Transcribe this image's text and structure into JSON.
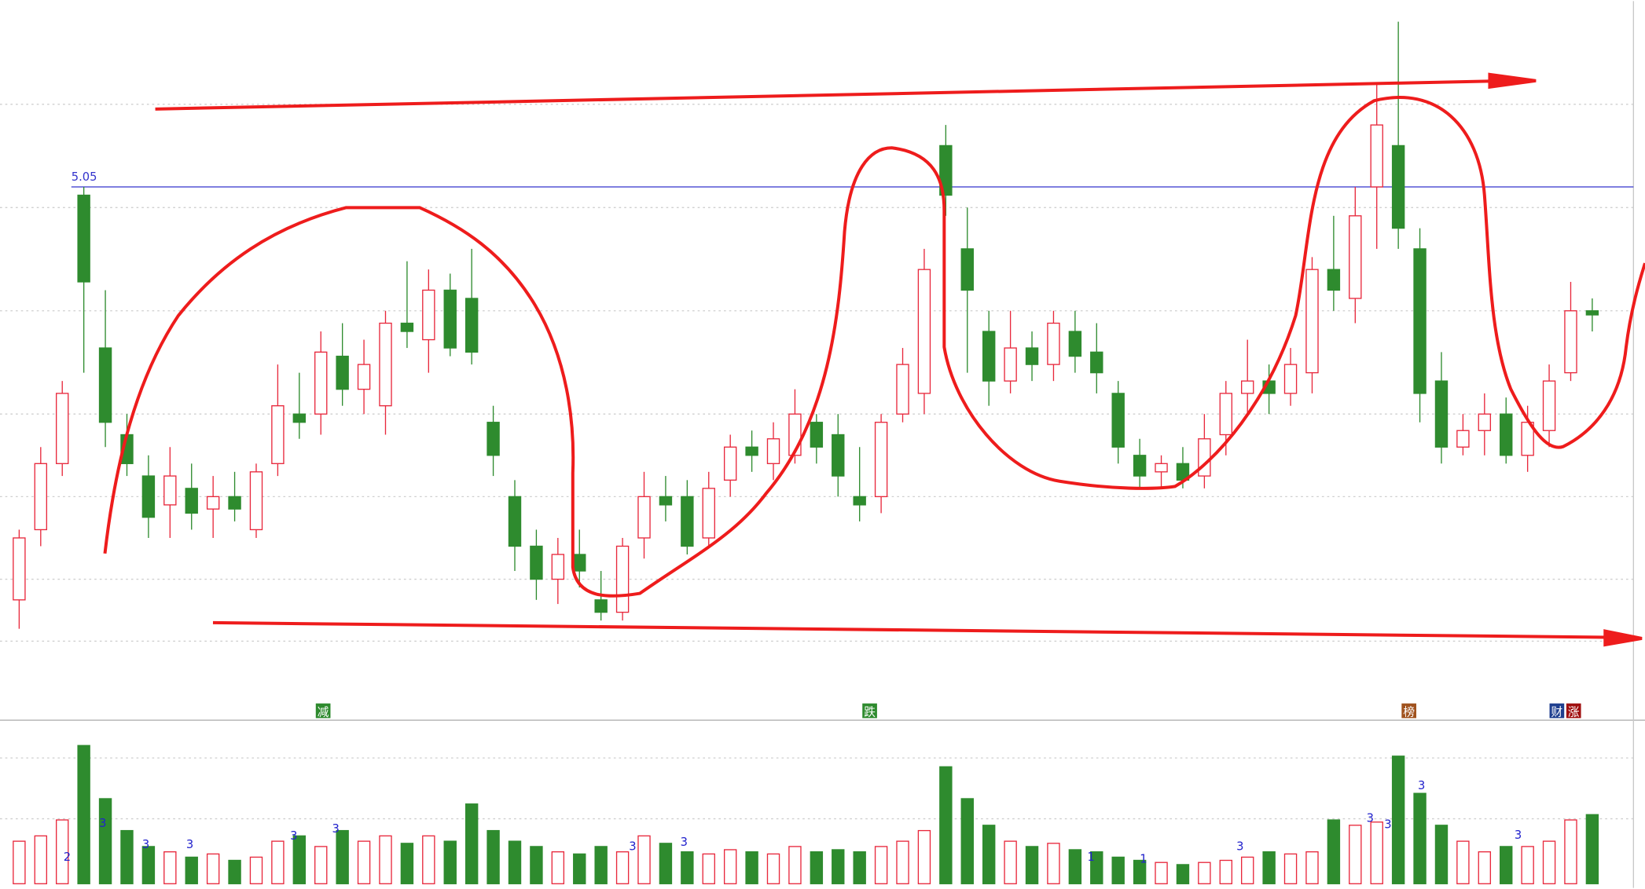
{
  "chart_data": {
    "type": "candlestick",
    "ylim": [
      3.85,
      5.5
    ],
    "grid_y": [
      5.25,
      5.0,
      4.75,
      4.5,
      4.3,
      4.1,
      3.95
    ],
    "reference_line": {
      "value": 5.05,
      "color": "#3333cc"
    },
    "up_color": "#e8283c",
    "down_color": "#2e8b2e",
    "open": [
      4.05,
      4.22,
      4.38,
      5.03,
      4.66,
      4.45,
      4.35,
      4.28,
      4.32,
      4.27,
      4.3,
      4.22,
      4.38,
      4.5,
      4.5,
      4.64,
      4.56,
      4.52,
      4.72,
      4.68,
      4.8,
      4.78,
      4.48,
      4.3,
      4.18,
      4.1,
      4.16,
      4.05,
      4.02,
      4.2,
      4.3,
      4.3,
      4.2,
      4.34,
      4.42,
      4.38,
      4.4,
      4.48,
      4.45,
      4.3,
      4.3,
      4.5,
      4.55,
      5.15,
      4.9,
      4.7,
      4.58,
      4.66,
      4.62,
      4.7,
      4.65,
      4.55,
      4.4,
      4.36,
      4.38,
      4.35,
      4.45,
      4.55,
      4.58,
      4.55,
      4.6,
      4.85,
      4.78,
      5.05,
      5.15,
      4.9,
      4.58,
      4.42,
      4.46,
      4.5,
      4.4,
      4.46,
      4.6,
      4.75
    ],
    "high": [
      4.22,
      4.42,
      4.58,
      5.05,
      4.8,
      4.5,
      4.4,
      4.42,
      4.38,
      4.35,
      4.36,
      4.38,
      4.62,
      4.6,
      4.7,
      4.72,
      4.68,
      4.75,
      4.87,
      4.85,
      4.84,
      4.9,
      4.52,
      4.34,
      4.22,
      4.2,
      4.22,
      4.12,
      4.2,
      4.36,
      4.35,
      4.34,
      4.36,
      4.45,
      4.46,
      4.48,
      4.56,
      4.5,
      4.5,
      4.42,
      4.5,
      4.66,
      4.9,
      5.2,
      5.0,
      4.75,
      4.75,
      4.7,
      4.75,
      4.75,
      4.72,
      4.58,
      4.44,
      4.4,
      4.42,
      4.5,
      4.58,
      4.68,
      4.62,
      4.66,
      4.88,
      4.98,
      5.05,
      5.3,
      5.45,
      4.95,
      4.65,
      4.5,
      4.55,
      4.54,
      4.52,
      4.62,
      4.82,
      4.78
    ],
    "low": [
      3.98,
      4.18,
      4.35,
      4.6,
      4.42,
      4.35,
      4.2,
      4.2,
      4.22,
      4.2,
      4.24,
      4.2,
      4.35,
      4.44,
      4.45,
      4.52,
      4.5,
      4.45,
      4.66,
      4.6,
      4.64,
      4.62,
      4.35,
      4.12,
      4.05,
      4.04,
      4.08,
      4.0,
      4.0,
      4.15,
      4.24,
      4.16,
      4.18,
      4.3,
      4.36,
      4.34,
      4.38,
      4.38,
      4.3,
      4.24,
      4.26,
      4.48,
      4.5,
      4.98,
      4.6,
      4.52,
      4.55,
      4.58,
      4.58,
      4.6,
      4.55,
      4.38,
      4.32,
      4.32,
      4.32,
      4.32,
      4.4,
      4.5,
      4.5,
      4.52,
      4.55,
      4.75,
      4.72,
      4.9,
      4.9,
      4.48,
      4.38,
      4.4,
      4.4,
      4.38,
      4.36,
      4.42,
      4.58,
      4.7
    ],
    "close": [
      4.2,
      4.38,
      4.55,
      4.82,
      4.48,
      4.38,
      4.25,
      4.35,
      4.26,
      4.3,
      4.27,
      4.36,
      4.52,
      4.48,
      4.65,
      4.56,
      4.62,
      4.72,
      4.7,
      4.8,
      4.66,
      4.65,
      4.4,
      4.18,
      4.1,
      4.16,
      4.12,
      4.02,
      4.18,
      4.3,
      4.28,
      4.18,
      4.32,
      4.42,
      4.4,
      4.44,
      4.5,
      4.42,
      4.35,
      4.28,
      4.48,
      4.62,
      4.85,
      5.03,
      4.8,
      4.58,
      4.66,
      4.62,
      4.72,
      4.64,
      4.6,
      4.42,
      4.35,
      4.38,
      4.34,
      4.44,
      4.55,
      4.58,
      4.55,
      4.62,
      4.85,
      4.8,
      4.98,
      5.2,
      4.95,
      4.55,
      4.42,
      4.46,
      4.5,
      4.4,
      4.48,
      4.58,
      4.75,
      4.74
    ],
    "volume": [
      40,
      45,
      60,
      130,
      80,
      50,
      35,
      30,
      25,
      28,
      22,
      25,
      40,
      45,
      35,
      50,
      40,
      45,
      38,
      45,
      40,
      75,
      50,
      40,
      35,
      30,
      28,
      35,
      30,
      45,
      38,
      30,
      28,
      32,
      30,
      28,
      35,
      30,
      32,
      30,
      35,
      40,
      50,
      110,
      80,
      55,
      40,
      35,
      38,
      32,
      30,
      25,
      22,
      20,
      18,
      20,
      22,
      25,
      30,
      28,
      30,
      60,
      55,
      58,
      120,
      85,
      55,
      40,
      30,
      35,
      35,
      40,
      60,
      65
    ],
    "volume_lim": [
      0,
      140
    ],
    "event_markers": [
      "减",
      "跌",
      "榜",
      "财",
      "涨"
    ],
    "volume_signals": [
      "2",
      "3",
      "3",
      "3",
      "3",
      "3",
      "3",
      "3",
      "1",
      "1",
      "3",
      "3",
      "3",
      "3",
      "3"
    ]
  }
}
